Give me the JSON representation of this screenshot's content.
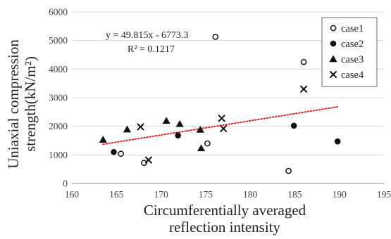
{
  "chart_data": {
    "type": "scatter",
    "xlabel_lines": [
      "Circumferentially averaged",
      "reflection intensity"
    ],
    "ylabel_lines": [
      "Uniaxial compression",
      "strength(kN/m²)"
    ],
    "xlim": [
      160,
      195
    ],
    "ylim": [
      0,
      6000
    ],
    "x_ticks": [
      "160",
      "165",
      "170",
      "175",
      "180",
      "185",
      "190",
      "195"
    ],
    "y_ticks": [
      "0",
      "1000",
      "2000",
      "3000",
      "4000",
      "5000",
      "6000"
    ],
    "grid": "horizontal",
    "legend_position": "top-right",
    "series": [
      {
        "name": "case1",
        "marker": "open-circle",
        "points": [
          [
            176.1,
            5130
          ],
          [
            186.0,
            4250
          ],
          [
            165.5,
            1040
          ],
          [
            168.1,
            720
          ],
          [
            175.2,
            1400
          ],
          [
            184.3,
            440
          ]
        ]
      },
      {
        "name": "case2",
        "marker": "filled-circle",
        "points": [
          [
            164.7,
            1100
          ],
          [
            171.9,
            1680
          ],
          [
            184.9,
            2020
          ],
          [
            189.8,
            1470
          ]
        ]
      },
      {
        "name": "case3",
        "marker": "filled-triangle",
        "points": [
          [
            163.5,
            1530
          ],
          [
            166.2,
            1890
          ],
          [
            170.6,
            2190
          ],
          [
            172.1,
            2080
          ],
          [
            174.4,
            1880
          ],
          [
            174.5,
            1230
          ]
        ]
      },
      {
        "name": "case4",
        "marker": "cross",
        "points": [
          [
            167.7,
            1980
          ],
          [
            168.6,
            820
          ],
          [
            176.8,
            2280
          ],
          [
            177.0,
            1920
          ],
          [
            186.0,
            3300
          ]
        ]
      }
    ],
    "trendline": {
      "slope": 49.815,
      "intercept": -6773.3,
      "x_range": [
        163.5,
        189.8
      ],
      "color": "#e0262a",
      "style": "dotted"
    },
    "annotations": {
      "equation": "y = 49.815x - 6773.3",
      "r_squared": "R² = 0.1217"
    }
  }
}
